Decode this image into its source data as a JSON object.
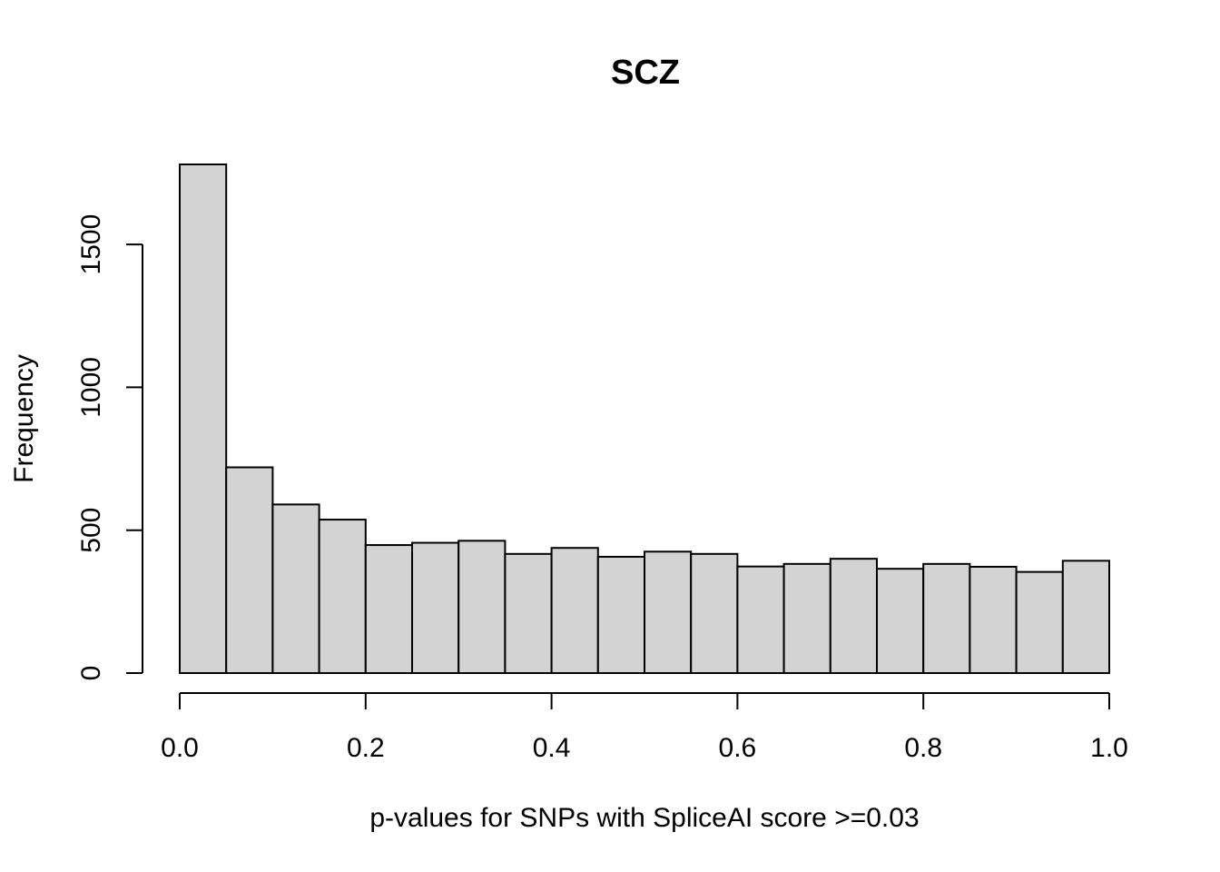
{
  "chart_data": {
    "type": "bar",
    "title": "SCZ",
    "xlabel": "p-values for SNPs with SpliceAI score >=0.03",
    "ylabel": "Frequency",
    "xlim": [
      0,
      1
    ],
    "ylim": [
      0,
      1780
    ],
    "x_ticks": [
      0.0,
      0.2,
      0.4,
      0.6,
      0.8,
      1.0
    ],
    "x_tick_labels": [
      "0.0",
      "0.2",
      "0.4",
      "0.6",
      "0.8",
      "1.0"
    ],
    "y_ticks": [
      0,
      500,
      1000,
      1500
    ],
    "y_tick_labels": [
      "0",
      "500",
      "1000",
      "1500"
    ],
    "bin_edges": [
      0.0,
      0.05,
      0.1,
      0.15,
      0.2,
      0.25,
      0.3,
      0.35,
      0.4,
      0.45,
      0.5,
      0.55,
      0.6,
      0.65,
      0.7,
      0.75,
      0.8,
      0.85,
      0.9,
      0.95,
      1.0
    ],
    "values": [
      1780,
      720,
      590,
      537,
      448,
      456,
      463,
      417,
      438,
      407,
      425,
      417,
      373,
      382,
      400,
      365,
      382,
      372,
      354,
      393
    ],
    "bar_fill": "#d3d3d3",
    "bar_stroke": "#000000",
    "grid": false
  }
}
